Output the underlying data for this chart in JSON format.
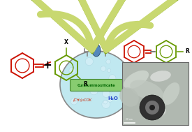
{
  "bg_color": "#ffffff",
  "flask_fill_color": "#c0e8f0",
  "flask_edge_color": "#888888",
  "arrow_fill_color": "#c8d870",
  "arrow_edge_color": "#88aa20",
  "catalyst_box_fill": "#88cc70",
  "catalyst_box_edge": "#448833",
  "catalyst_text": "Cu/aluminosilicate",
  "catalyst_text_color": "#006600",
  "base_text": "(CH₃)₃COK",
  "base_text_color": "#cc2200",
  "solvent_text": "H₂O",
  "solvent_text_color": "#2244cc",
  "red_color": "#cc1100",
  "green_color": "#669900",
  "stopper_color": "#5588bb",
  "stopper_edge": "#224466"
}
